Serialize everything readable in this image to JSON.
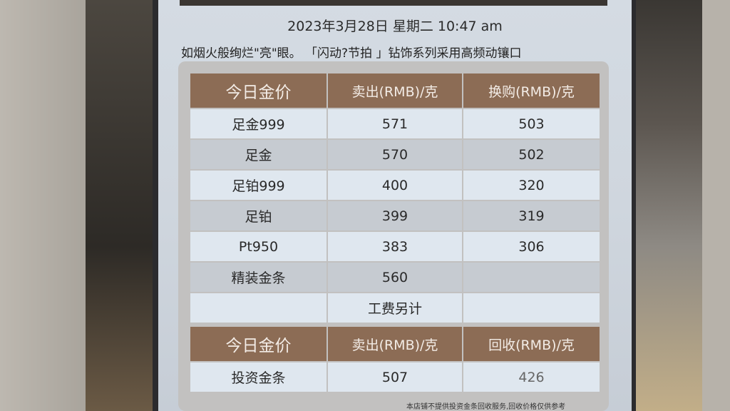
{
  "datetime": "2023年3月28日 星期二 10:47 am",
  "ticker": "如烟火般绚烂\"亮\"眼。 「闪动?节拍 」钻饰系列采用高频动镶口",
  "table1": {
    "headers": [
      "今日金价",
      "卖出(RMB)/克",
      "换购(RMB)/克"
    ],
    "rows": [
      [
        "足金999",
        "571",
        "503"
      ],
      [
        "足金",
        "570",
        "502"
      ],
      [
        "足铂999",
        "400",
        "320"
      ],
      [
        "足铂",
        "399",
        "319"
      ],
      [
        "Pt950",
        "383",
        "306"
      ],
      [
        "精装金条",
        "560",
        ""
      ]
    ],
    "footer": "工费另计"
  },
  "table2": {
    "headers": [
      "今日金价",
      "卖出(RMB)/克",
      "回收(RMB)/克"
    ],
    "rows": [
      [
        "投资金条",
        "507",
        "426"
      ]
    ]
  },
  "note": "本店铺不提供投资金条回收服务,回收价格仅供参考",
  "colors": {
    "header": "#8c6c55",
    "row_light": "#dfe7ef",
    "row_dark": "#c6cbd1"
  }
}
